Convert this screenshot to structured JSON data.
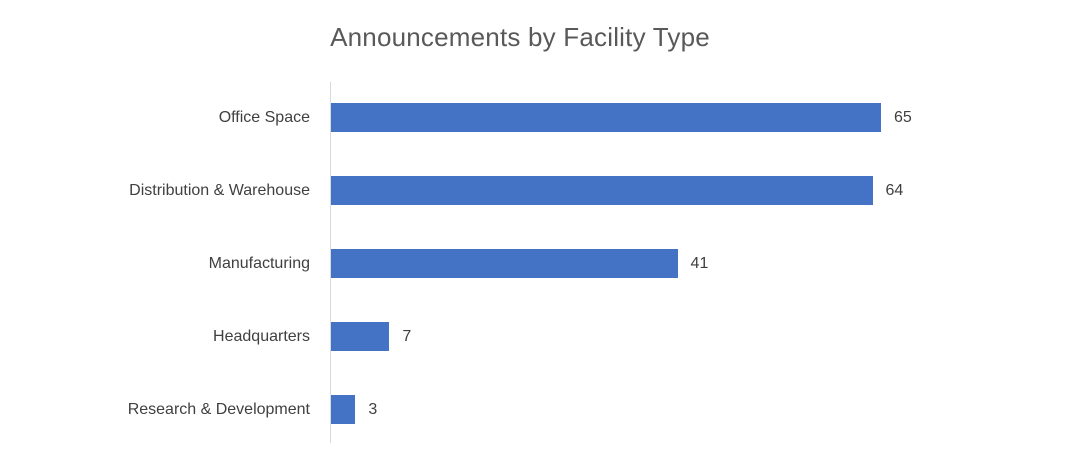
{
  "chart_data": {
    "type": "bar",
    "orientation": "horizontal",
    "title": "Announcements by Facility Type",
    "categories": [
      "Office Space",
      "Distribution & Warehouse",
      "Manufacturing",
      "Headquarters",
      "Research & Development"
    ],
    "values": [
      65,
      64,
      41,
      7,
      3
    ],
    "data_labels": [
      "65",
      "64",
      "41",
      "7",
      "3"
    ],
    "xlabel": "",
    "ylabel": "",
    "xlim": [
      0,
      65
    ],
    "grid": false,
    "legend": "none",
    "bar_color": "#4472C4",
    "axis_line_color": "#D9D9D9",
    "title_color": "#595959",
    "label_color": "#404040"
  }
}
